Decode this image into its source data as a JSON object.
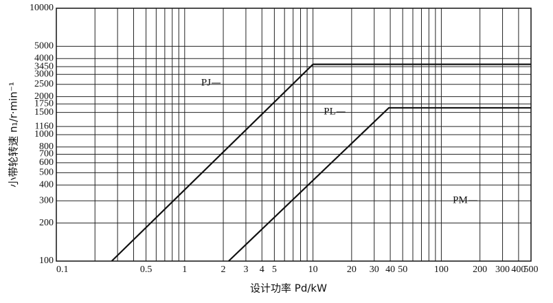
{
  "chart_data": {
    "type": "line",
    "xlabel": "设计功率 Pd/kW",
    "ylabel": "小带轮转速 n₁/r·min⁻¹",
    "xscale": "log",
    "yscale": "log",
    "grid": true,
    "color": "#111111",
    "xlim": [
      0.1,
      500
    ],
    "ylim": [
      100,
      10000
    ],
    "xticks": [
      0.1,
      0.5,
      1,
      2,
      3,
      4,
      5,
      10,
      20,
      30,
      40,
      50,
      100,
      200,
      300,
      400,
      500
    ],
    "x_minor_grid": [
      0.2,
      0.3,
      0.4,
      0.6,
      0.7,
      0.8,
      0.9,
      6,
      7,
      8,
      9,
      60,
      70,
      80,
      90
    ],
    "yticks": [
      100,
      200,
      300,
      400,
      500,
      600,
      700,
      800,
      1000,
      1160,
      1500,
      1750,
      2000,
      2500,
      3000,
      3450,
      4000,
      5000,
      10000
    ],
    "series": [
      {
        "name": "PJ",
        "color": "#111111",
        "x": [
          0.27,
          10,
          500
        ],
        "values": [
          100,
          3600,
          3600
        ]
      },
      {
        "name": "PL",
        "color": "#111111",
        "x": [
          2.2,
          39,
          500
        ],
        "values": [
          100,
          1630,
          1630
        ]
      },
      {
        "name": "PM",
        "color": "#111111",
        "x": [],
        "values": []
      }
    ]
  }
}
